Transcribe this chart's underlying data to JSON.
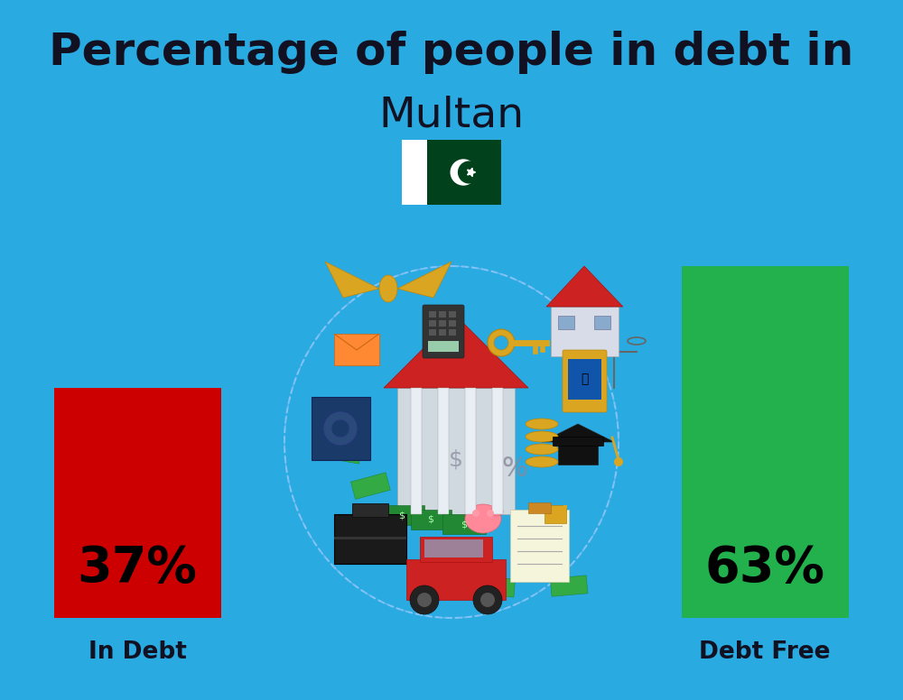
{
  "title_line1": "Percentage of people in debt in",
  "title_line2": "Multan",
  "title_fontsize": 36,
  "title_fontweight": "bold",
  "title_color": "#111122",
  "city_fontsize": 34,
  "city_fontweight": "normal",
  "background_color": "#29ABE2",
  "bar_left_label": "37%",
  "bar_left_color": "#CC0000",
  "bar_left_text": "In Debt",
  "bar_right_label": "63%",
  "bar_right_color": "#22B14C",
  "bar_right_text": "Debt Free",
  "bar_label_fontsize": 40,
  "bar_text_fontsize": 19,
  "bar_text_fontweight": "bold",
  "bar_text_color": "#111122",
  "flag_white": "#FFFFFF",
  "flag_green": "#01411C",
  "dashed_circle_color": "#CCDDFF",
  "dashed_circle_alpha": 0.7
}
